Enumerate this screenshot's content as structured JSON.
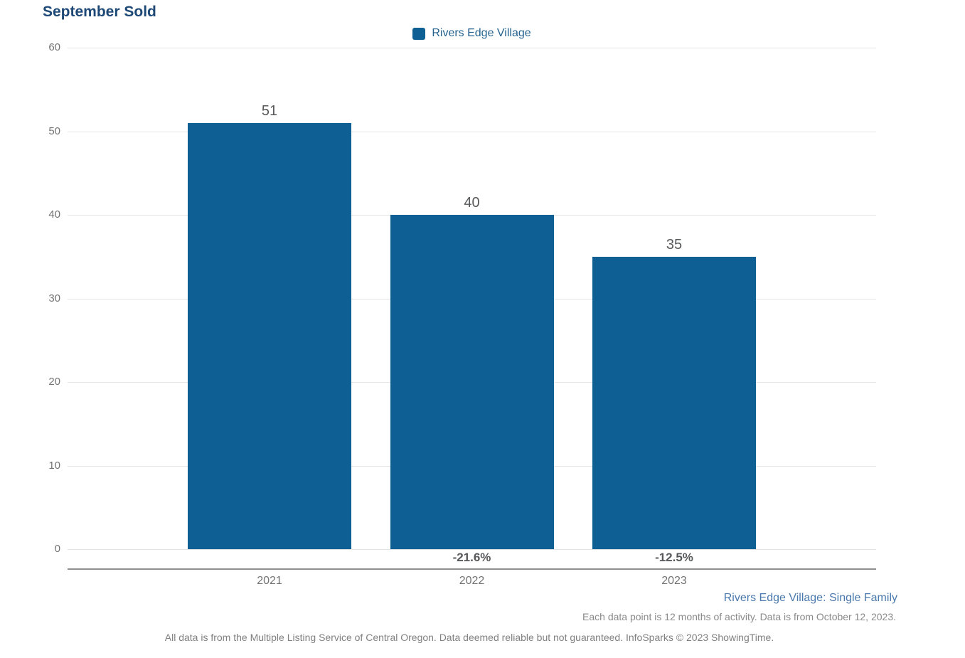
{
  "title": "September Sold",
  "legend": {
    "label": "Rivers Edge Village"
  },
  "footer": {
    "series_note": "Rivers Edge Village: Single Family",
    "data_note": "Each data point is 12 months of activity. Data is from October 12, 2023.",
    "disclaimer": "All data is from the Multiple Listing Service of Central Oregon. Data deemed reliable but not guaranteed. InfoSparks © 2023 ShowingTime."
  },
  "colors": {
    "bar": "#0e5f94",
    "title_text": "#1e4976",
    "legend_text": "#24638f",
    "footer_link_text": "#4a79ae",
    "value_label_text": "#57585a",
    "tick_label_text": "#737373",
    "gridline": "#e4e4e4",
    "axis_line": "#8f8f8f"
  },
  "chart_data": {
    "type": "bar",
    "title": "September Sold",
    "series_name": "Rivers Edge Village",
    "categories": [
      "2021",
      "2022",
      "2023"
    ],
    "values": [
      51,
      40,
      35
    ],
    "pct_change": [
      "",
      "-21.6%",
      "-12.5%"
    ],
    "yticks": [
      60,
      50,
      40,
      30,
      20,
      10,
      0
    ],
    "ylim": [
      0,
      60
    ],
    "xlabel": "",
    "ylabel": "",
    "grid": true,
    "legend_position": "top-center"
  }
}
